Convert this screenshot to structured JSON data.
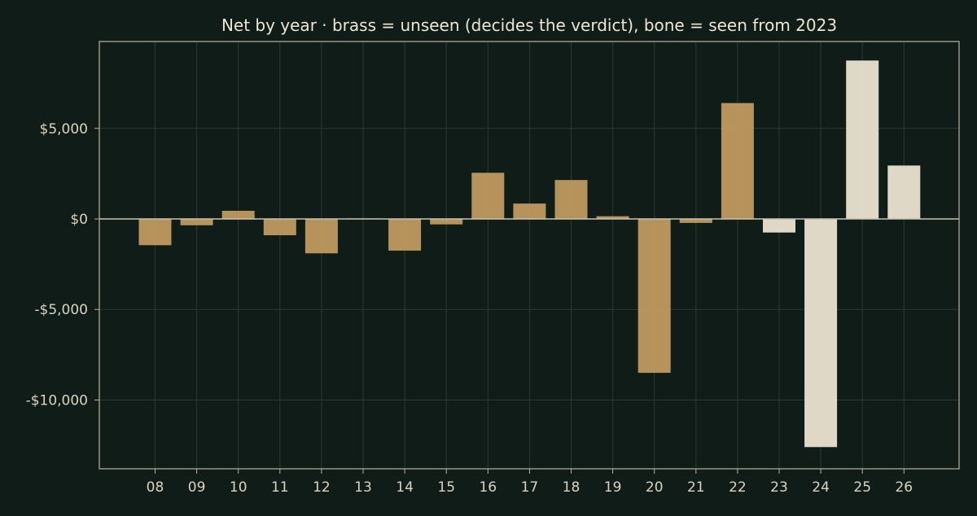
{
  "chart_data": {
    "type": "bar",
    "title": "Net by year  ·  brass = unseen (decides the verdict), bone = seen from 2023",
    "xlabel": "",
    "ylabel": "",
    "categories": [
      "08",
      "09",
      "10",
      "11",
      "12",
      "13",
      "14",
      "15",
      "16",
      "17",
      "18",
      "19",
      "20",
      "21",
      "22",
      "23",
      "24",
      "25",
      "26"
    ],
    "values": [
      -1450,
      -350,
      450,
      -900,
      -1900,
      30,
      -1750,
      -300,
      2550,
      850,
      2150,
      150,
      -8500,
      -220,
      6400,
      -750,
      -12600,
      8750,
      2950
    ],
    "groups": [
      "unseen",
      "unseen",
      "unseen",
      "unseen",
      "unseen",
      "unseen",
      "unseen",
      "unseen",
      "unseen",
      "unseen",
      "unseen",
      "unseen",
      "unseen",
      "unseen",
      "unseen",
      "seen",
      "seen",
      "seen",
      "seen"
    ],
    "ylim": [
      -13800,
      9800
    ],
    "yticks": [
      5000,
      0,
      -5000,
      -10000
    ],
    "ytick_labels": [
      "$5,000",
      "$0",
      "-$5,000",
      "-$10,000"
    ],
    "grid": true,
    "colors": {
      "background": "#0f1c17",
      "unseen": "#c09a5e",
      "seen": "#ebe3d1",
      "axis": "#b9b49f",
      "zero_line": "#c8c4b2",
      "grid": "#2a3a33",
      "text": "#d9d4c2"
    }
  }
}
